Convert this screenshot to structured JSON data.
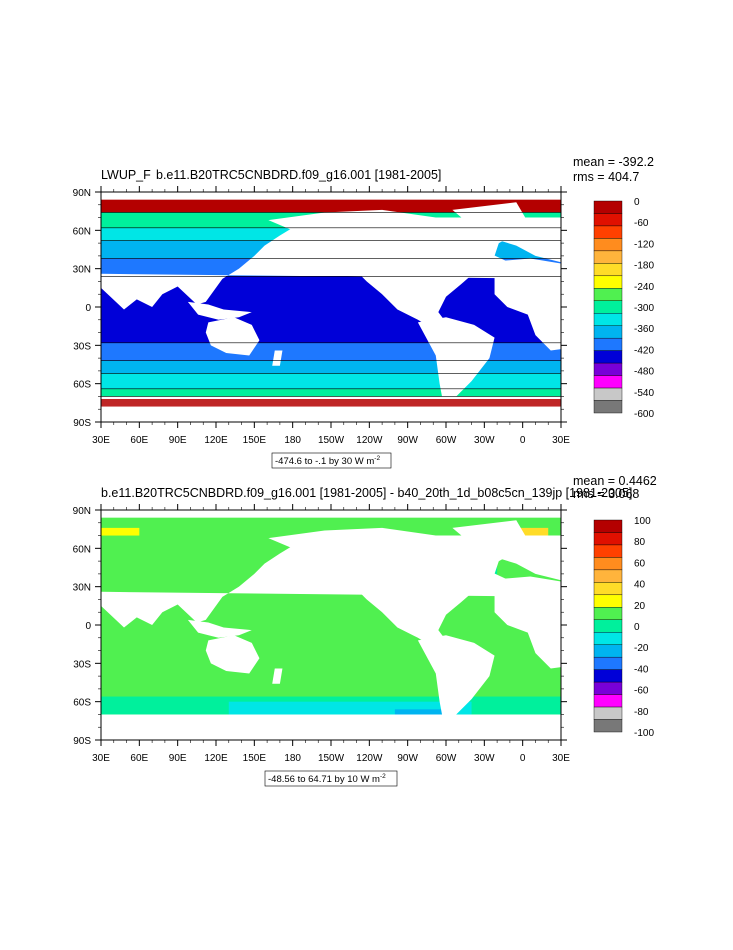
{
  "chart_data": [
    {
      "type": "heatmap",
      "variable": "LWUP_F",
      "title": "b.e11.B20TRC5CNBDRD.f09_g16.001 [1981-2005]",
      "stats": {
        "mean": "mean = -392.2",
        "rms": "rms = 404.7"
      },
      "range_label": "-474.6 to -.1 by 30",
      "units": "W m",
      "units_exp": "-2",
      "x_ticks": [
        "30E",
        "60E",
        "90E",
        "120E",
        "150E",
        "180",
        "150W",
        "120W",
        "90W",
        "60W",
        "30W",
        "0",
        "30E"
      ],
      "y_ticks": [
        "90N",
        "60N",
        "30N",
        "0",
        "30S",
        "60S",
        "90S"
      ],
      "colorbar": {
        "labels": [
          "0",
          "-60",
          "-120",
          "-180",
          "-240",
          "-300",
          "-360",
          "-420",
          "-480",
          "-540",
          "-600"
        ],
        "colors": [
          "#b40000",
          "#e01000",
          "#ff4000",
          "#ff8c1e",
          "#ffb43c",
          "#ffdc28",
          "#ffff00",
          "#50f050",
          "#00f09c",
          "#00e6e6",
          "#00b4f0",
          "#1e78ff",
          "#0000d8",
          "#7800d8",
          "#ff00ff",
          "#c8c8c8",
          "#787878"
        ]
      },
      "approx_zonal_values": [
        {
          "lat": 75,
          "value": -240
        },
        {
          "lat": 60,
          "value": -330
        },
        {
          "lat": 45,
          "value": -390
        },
        {
          "lat": 30,
          "value": -420
        },
        {
          "lat": 15,
          "value": -450
        },
        {
          "lat": 0,
          "value": -460
        },
        {
          "lat": -15,
          "value": -450
        },
        {
          "lat": -30,
          "value": -420
        },
        {
          "lat": -45,
          "value": -390
        },
        {
          "lat": -60,
          "value": -350
        },
        {
          "lat": -70,
          "value": -200
        }
      ]
    },
    {
      "type": "heatmap",
      "variable": "",
      "title": "b.e11.B20TRC5CNBDRD.f09_g16.001 [1981-2005] - b40_20th_1d_b08c5cn_139jp [1981-2005]",
      "stats": {
        "mean": "mean = 0.4462",
        "rms": "rms = 3.068"
      },
      "range_label": "-48.56 to 64.71 by 10",
      "units": "W m",
      "units_exp": "-2",
      "x_ticks": [
        "30E",
        "60E",
        "90E",
        "120E",
        "150E",
        "180",
        "150W",
        "120W",
        "90W",
        "60W",
        "30W",
        "0",
        "30E"
      ],
      "y_ticks": [
        "90N",
        "60N",
        "30N",
        "0",
        "30S",
        "60S",
        "90S"
      ],
      "colorbar": {
        "labels": [
          "100",
          "80",
          "60",
          "40",
          "20",
          "0",
          "-20",
          "-40",
          "-60",
          "-80",
          "-100"
        ],
        "colors": [
          "#b40000",
          "#e01000",
          "#ff4000",
          "#ff8c1e",
          "#ffb43c",
          "#ffdc28",
          "#ffff00",
          "#50f050",
          "#00f09c",
          "#00e6e6",
          "#00b4f0",
          "#1e78ff",
          "#0000d8",
          "#7800d8",
          "#ff00ff",
          "#c8c8c8",
          "#787878"
        ]
      },
      "approx_zonal_values": [
        {
          "lat": 75,
          "value": 10
        },
        {
          "lat": 45,
          "value": -10
        },
        {
          "lat": 0,
          "value": 0
        },
        {
          "lat": -45,
          "value": -15
        },
        {
          "lat": -65,
          "value": -25
        }
      ]
    }
  ]
}
